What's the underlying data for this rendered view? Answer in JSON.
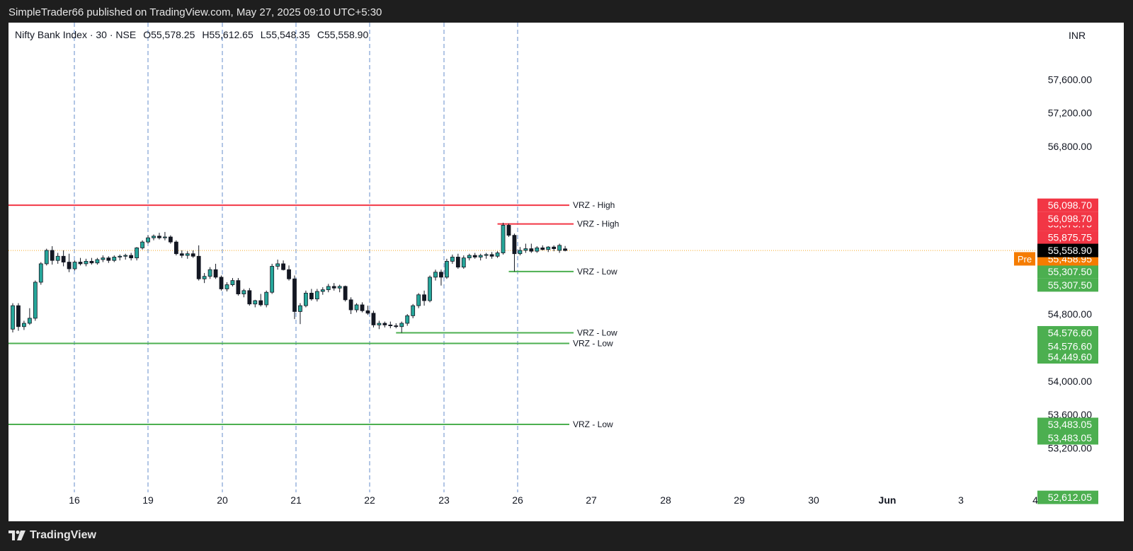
{
  "header": {
    "publisher_line": "SimpleTrader66 published on TradingView.com, May 27, 2025 09:10 UTC+5:30"
  },
  "legend": {
    "symbol": "Nifty Bank Index · 30 · NSE",
    "open": "O55,578.25",
    "high": "H55,612.65",
    "low": "L55,548.35",
    "close": "C55,558.90"
  },
  "currency": "INR",
  "footer": {
    "brand": "TradingView",
    "logo_icon": "tradingview-logo-icon"
  },
  "colors": {
    "up": "#26a69a",
    "down": "#131722",
    "resistance": "#f23645",
    "support": "#4caf50",
    "pre_market": "#f57c00",
    "last_price": "#000000",
    "session_divider": "#4a78c2"
  },
  "chart_data": {
    "type": "candlestick",
    "interval": "30",
    "y_axis": {
      "unit": "INR",
      "range": [
        52400,
        57950
      ],
      "tick_labels": [
        "57,600.00",
        "57,200.00",
        "56,800.00",
        "54,800.00",
        "54,000.00",
        "53,600.00",
        "53,200.00"
      ]
    },
    "x_axis": {
      "tick_labels": [
        "16",
        "19",
        "20",
        "21",
        "22",
        "23",
        "26",
        "27",
        "28",
        "29",
        "30",
        "Jun",
        "3",
        "4"
      ]
    },
    "session_dividers": [
      "16",
      "19",
      "20",
      "21",
      "22",
      "23",
      "26"
    ],
    "candles": [
      {
        "o": 54620,
        "h": 54930,
        "l": 54580,
        "c": 54900
      },
      {
        "o": 54900,
        "h": 54930,
        "l": 54600,
        "c": 54650
      },
      {
        "o": 54650,
        "h": 54720,
        "l": 54610,
        "c": 54690
      },
      {
        "o": 54690,
        "h": 54870,
        "l": 54670,
        "c": 54750
      },
      {
        "o": 54750,
        "h": 55200,
        "l": 54720,
        "c": 55180
      },
      {
        "o": 55180,
        "h": 55420,
        "l": 55150,
        "c": 55400
      },
      {
        "o": 55400,
        "h": 55580,
        "l": 55380,
        "c": 55560
      },
      {
        "o": 55560,
        "h": 55610,
        "l": 55390,
        "c": 55440
      },
      {
        "o": 55440,
        "h": 55530,
        "l": 55400,
        "c": 55490
      },
      {
        "o": 55490,
        "h": 55560,
        "l": 55370,
        "c": 55420
      },
      {
        "o": 55420,
        "h": 55520,
        "l": 55300,
        "c": 55340
      },
      {
        "o": 55340,
        "h": 55440,
        "l": 55320,
        "c": 55420
      },
      {
        "o": 55420,
        "h": 55470,
        "l": 55380,
        "c": 55400
      },
      {
        "o": 55400,
        "h": 55460,
        "l": 55370,
        "c": 55430
      },
      {
        "o": 55430,
        "h": 55470,
        "l": 55390,
        "c": 55410
      },
      {
        "o": 55410,
        "h": 55470,
        "l": 55390,
        "c": 55450
      },
      {
        "o": 55450,
        "h": 55500,
        "l": 55420,
        "c": 55470
      },
      {
        "o": 55470,
        "h": 55490,
        "l": 55410,
        "c": 55440
      },
      {
        "o": 55440,
        "h": 55500,
        "l": 55420,
        "c": 55480
      },
      {
        "o": 55480,
        "h": 55510,
        "l": 55440,
        "c": 55490
      },
      {
        "o": 55490,
        "h": 55520,
        "l": 55450,
        "c": 55500
      },
      {
        "o": 55500,
        "h": 55530,
        "l": 55440,
        "c": 55470
      },
      {
        "o": 55470,
        "h": 55600,
        "l": 55440,
        "c": 55590
      },
      {
        "o": 55590,
        "h": 55680,
        "l": 55570,
        "c": 55660
      },
      {
        "o": 55660,
        "h": 55740,
        "l": 55640,
        "c": 55710
      },
      {
        "o": 55710,
        "h": 55750,
        "l": 55680,
        "c": 55730
      },
      {
        "o": 55730,
        "h": 55770,
        "l": 55690,
        "c": 55710
      },
      {
        "o": 55710,
        "h": 55780,
        "l": 55680,
        "c": 55720
      },
      {
        "o": 55720,
        "h": 55740,
        "l": 55640,
        "c": 55660
      },
      {
        "o": 55660,
        "h": 55680,
        "l": 55500,
        "c": 55520
      },
      {
        "o": 55520,
        "h": 55560,
        "l": 55470,
        "c": 55500
      },
      {
        "o": 55500,
        "h": 55550,
        "l": 55460,
        "c": 55520
      },
      {
        "o": 55520,
        "h": 55560,
        "l": 55470,
        "c": 55490
      },
      {
        "o": 55490,
        "h": 55620,
        "l": 55200,
        "c": 55220
      },
      {
        "o": 55220,
        "h": 55290,
        "l": 55170,
        "c": 55250
      },
      {
        "o": 55250,
        "h": 55360,
        "l": 55220,
        "c": 55330
      },
      {
        "o": 55330,
        "h": 55400,
        "l": 55220,
        "c": 55240
      },
      {
        "o": 55240,
        "h": 55260,
        "l": 55080,
        "c": 55100
      },
      {
        "o": 55100,
        "h": 55180,
        "l": 55070,
        "c": 55150
      },
      {
        "o": 55150,
        "h": 55230,
        "l": 55130,
        "c": 55200
      },
      {
        "o": 55200,
        "h": 55230,
        "l": 55020,
        "c": 55040
      },
      {
        "o": 55040,
        "h": 55100,
        "l": 55000,
        "c": 55080
      },
      {
        "o": 55080,
        "h": 55110,
        "l": 54900,
        "c": 54920
      },
      {
        "o": 54920,
        "h": 54970,
        "l": 54880,
        "c": 54960
      },
      {
        "o": 54960,
        "h": 55040,
        "l": 54890,
        "c": 54910
      },
      {
        "o": 54910,
        "h": 55080,
        "l": 54880,
        "c": 55060
      },
      {
        "o": 55060,
        "h": 55400,
        "l": 55040,
        "c": 55370
      },
      {
        "o": 55370,
        "h": 55450,
        "l": 55330,
        "c": 55400
      },
      {
        "o": 55400,
        "h": 55440,
        "l": 55320,
        "c": 55330
      },
      {
        "o": 55330,
        "h": 55380,
        "l": 55200,
        "c": 55220
      },
      {
        "o": 55220,
        "h": 55260,
        "l": 54740,
        "c": 54830
      },
      {
        "o": 54830,
        "h": 54930,
        "l": 54680,
        "c": 54900
      },
      {
        "o": 54900,
        "h": 55080,
        "l": 54880,
        "c": 55050
      },
      {
        "o": 55050,
        "h": 55100,
        "l": 54960,
        "c": 54980
      },
      {
        "o": 54980,
        "h": 55100,
        "l": 54950,
        "c": 55070
      },
      {
        "o": 55070,
        "h": 55120,
        "l": 55030,
        "c": 55090
      },
      {
        "o": 55090,
        "h": 55160,
        "l": 55060,
        "c": 55130
      },
      {
        "o": 55130,
        "h": 55170,
        "l": 55080,
        "c": 55110
      },
      {
        "o": 55110,
        "h": 55150,
        "l": 55060,
        "c": 55130
      },
      {
        "o": 55130,
        "h": 55140,
        "l": 54950,
        "c": 54970
      },
      {
        "o": 54970,
        "h": 55000,
        "l": 54800,
        "c": 54850
      },
      {
        "o": 54850,
        "h": 54930,
        "l": 54820,
        "c": 54910
      },
      {
        "o": 54910,
        "h": 54940,
        "l": 54820,
        "c": 54840
      },
      {
        "o": 54840,
        "h": 54900,
        "l": 54790,
        "c": 54810
      },
      {
        "o": 54810,
        "h": 54840,
        "l": 54640,
        "c": 54670
      },
      {
        "o": 54670,
        "h": 54720,
        "l": 54620,
        "c": 54690
      },
      {
        "o": 54690,
        "h": 54710,
        "l": 54640,
        "c": 54670
      },
      {
        "o": 54670,
        "h": 54710,
        "l": 54630,
        "c": 54660
      },
      {
        "o": 54660,
        "h": 54690,
        "l": 54630,
        "c": 54650
      },
      {
        "o": 54650,
        "h": 54710,
        "l": 54576,
        "c": 54690
      },
      {
        "o": 54690,
        "h": 54800,
        "l": 54660,
        "c": 54780
      },
      {
        "o": 54780,
        "h": 54920,
        "l": 54750,
        "c": 54900
      },
      {
        "o": 54900,
        "h": 55050,
        "l": 54870,
        "c": 55030
      },
      {
        "o": 55030,
        "h": 55080,
        "l": 54900,
        "c": 54960
      },
      {
        "o": 54960,
        "h": 55260,
        "l": 54940,
        "c": 55240
      },
      {
        "o": 55240,
        "h": 55330,
        "l": 55200,
        "c": 55300
      },
      {
        "o": 55300,
        "h": 55330,
        "l": 55140,
        "c": 55240
      },
      {
        "o": 55240,
        "h": 55460,
        "l": 55220,
        "c": 55430
      },
      {
        "o": 55430,
        "h": 55510,
        "l": 55400,
        "c": 55480
      },
      {
        "o": 55480,
        "h": 55520,
        "l": 55340,
        "c": 55360
      },
      {
        "o": 55360,
        "h": 55500,
        "l": 55340,
        "c": 55470
      },
      {
        "o": 55470,
        "h": 55520,
        "l": 55440,
        "c": 55500
      },
      {
        "o": 55500,
        "h": 55530,
        "l": 55460,
        "c": 55480
      },
      {
        "o": 55480,
        "h": 55520,
        "l": 55440,
        "c": 55500
      },
      {
        "o": 55500,
        "h": 55530,
        "l": 55460,
        "c": 55510
      },
      {
        "o": 55510,
        "h": 55540,
        "l": 55460,
        "c": 55490
      },
      {
        "o": 55490,
        "h": 55550,
        "l": 55470,
        "c": 55530
      },
      {
        "o": 55530,
        "h": 55890,
        "l": 55510,
        "c": 55860
      },
      {
        "o": 55860,
        "h": 55880,
        "l": 55720,
        "c": 55740
      },
      {
        "o": 55740,
        "h": 55760,
        "l": 55307,
        "c": 55520
      },
      {
        "o": 55520,
        "h": 55600,
        "l": 55500,
        "c": 55560
      },
      {
        "o": 55560,
        "h": 55640,
        "l": 55530,
        "c": 55580
      },
      {
        "o": 55580,
        "h": 55640,
        "l": 55530,
        "c": 55550
      },
      {
        "o": 55550,
        "h": 55610,
        "l": 55530,
        "c": 55590
      },
      {
        "o": 55590,
        "h": 55620,
        "l": 55560,
        "c": 55570
      },
      {
        "o": 55570,
        "h": 55610,
        "l": 55540,
        "c": 55600
      },
      {
        "o": 55600,
        "h": 55620,
        "l": 55550,
        "c": 55580
      },
      {
        "o": 55560,
        "h": 55640,
        "l": 55530,
        "c": 55620
      },
      {
        "o": 55578.25,
        "h": 55612.65,
        "l": 55548.35,
        "c": 55558.9
      }
    ],
    "zones": [
      {
        "kind": "high",
        "label": "VRZ - High",
        "value": 56098.7,
        "axis_label": "56,098.70",
        "start_bar": 0
      },
      {
        "kind": "high",
        "label": "VRZ - High",
        "value": 55875.75,
        "axis_label": "55,875.75",
        "start_bar": 86
      },
      {
        "kind": "low",
        "label": "VRZ - Low",
        "value": 55307.5,
        "axis_label": "55,307.50",
        "start_bar": 88
      },
      {
        "kind": "low",
        "label": "VRZ - Low",
        "value": 54576.6,
        "axis_label": "54,576.60",
        "start_bar": 68
      },
      {
        "kind": "low",
        "label": "VRZ - Low",
        "value": 54449.6,
        "axis_label": "54,449.60",
        "start_bar": 0
      },
      {
        "kind": "low",
        "label": "VRZ - Low",
        "value": 53483.05,
        "axis_label": "53,483.05",
        "start_bar": 0
      }
    ],
    "last_price": {
      "value": 55558.9,
      "label": "55,558.90"
    },
    "pre_market": {
      "tag": "Pre",
      "value": 55458.95,
      "label": "55,458.95"
    },
    "extra_axis_labels": [
      {
        "value": 52612.05,
        "label": "52,612.05"
      }
    ]
  }
}
